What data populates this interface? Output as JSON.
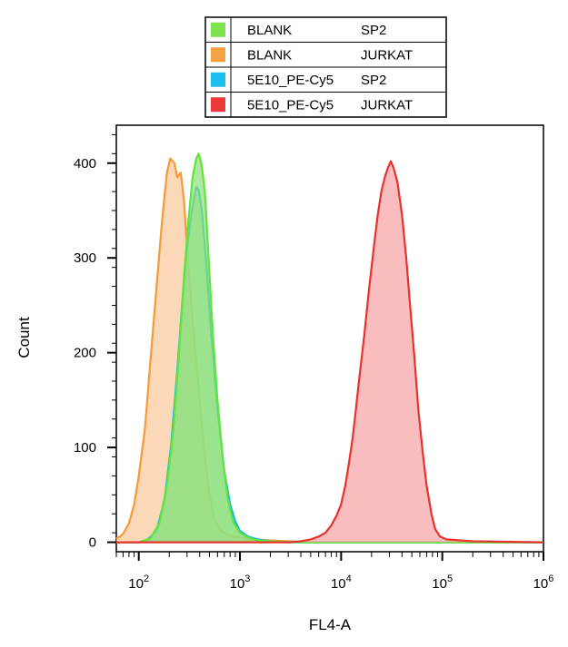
{
  "chart_data": {
    "type": "area",
    "xlabel": "FL4-A",
    "ylabel": "Count",
    "x_scale": "log",
    "xlim": [
      60,
      1000000
    ],
    "ylim": [
      -10,
      440
    ],
    "x_ticks": [
      {
        "value": 100,
        "base": "10",
        "exp": "2"
      },
      {
        "value": 1000,
        "base": "10",
        "exp": "3"
      },
      {
        "value": 10000,
        "base": "10",
        "exp": "4"
      },
      {
        "value": 100000,
        "base": "10",
        "exp": "5"
      },
      {
        "value": 1000000,
        "base": "10",
        "exp": "6"
      }
    ],
    "y_ticks": [
      {
        "value": 0,
        "label": "0"
      },
      {
        "value": 100,
        "label": "100"
      },
      {
        "value": 200,
        "label": "200"
      },
      {
        "value": 300,
        "label": "300"
      },
      {
        "value": 400,
        "label": "400"
      }
    ],
    "legend_position": "top-center",
    "grid": false,
    "series": [
      {
        "name": "BLANK",
        "sample": "JURKAT",
        "fill": "#f9c89a",
        "stroke": "#f59a3a",
        "points": [
          [
            60,
            4
          ],
          [
            65,
            6
          ],
          [
            70,
            9
          ],
          [
            80,
            20
          ],
          [
            90,
            40
          ],
          [
            100,
            70
          ],
          [
            115,
            120
          ],
          [
            130,
            190
          ],
          [
            150,
            270
          ],
          [
            170,
            340
          ],
          [
            190,
            390
          ],
          [
            205,
            405
          ],
          [
            225,
            400
          ],
          [
            240,
            385
          ],
          [
            260,
            390
          ],
          [
            280,
            360
          ],
          [
            310,
            290
          ],
          [
            350,
            220
          ],
          [
            400,
            150
          ],
          [
            450,
            90
          ],
          [
            500,
            50
          ],
          [
            560,
            25
          ],
          [
            650,
            12
          ],
          [
            800,
            7
          ],
          [
            1000,
            5
          ],
          [
            1300,
            3
          ],
          [
            2000,
            2
          ],
          [
            3000,
            1
          ],
          [
            5000,
            0
          ],
          [
            10000,
            0
          ],
          [
            100000,
            0
          ],
          [
            1000000,
            0
          ]
        ]
      },
      {
        "name": "5E10_PE-Cy5",
        "sample": "SP2",
        "fill": "#9fe09a",
        "stroke": "#1ab2e8",
        "points": [
          [
            60,
            0
          ],
          [
            100,
            0
          ],
          [
            120,
            2
          ],
          [
            150,
            12
          ],
          [
            180,
            45
          ],
          [
            210,
            105
          ],
          [
            240,
            180
          ],
          [
            270,
            255
          ],
          [
            300,
            310
          ],
          [
            330,
            345
          ],
          [
            355,
            365
          ],
          [
            370,
            375
          ],
          [
            390,
            372
          ],
          [
            420,
            350
          ],
          [
            460,
            300
          ],
          [
            520,
            220
          ],
          [
            600,
            140
          ],
          [
            700,
            75
          ],
          [
            800,
            40
          ],
          [
            900,
            22
          ],
          [
            1000,
            12
          ],
          [
            1200,
            6
          ],
          [
            1500,
            3
          ],
          [
            2000,
            1
          ],
          [
            3000,
            0
          ],
          [
            100000,
            0
          ],
          [
            1000000,
            0
          ]
        ]
      },
      {
        "name": "BLANK",
        "sample": "SP2",
        "fill": "#8fdf7a",
        "stroke": "#5fe63a",
        "points": [
          [
            60,
            0
          ],
          [
            100,
            0
          ],
          [
            130,
            4
          ],
          [
            160,
            20
          ],
          [
            190,
            60
          ],
          [
            220,
            120
          ],
          [
            250,
            200
          ],
          [
            280,
            280
          ],
          [
            310,
            340
          ],
          [
            340,
            385
          ],
          [
            370,
            405
          ],
          [
            390,
            410
          ],
          [
            415,
            400
          ],
          [
            450,
            370
          ],
          [
            490,
            300
          ],
          [
            540,
            220
          ],
          [
            600,
            150
          ],
          [
            680,
            85
          ],
          [
            760,
            45
          ],
          [
            850,
            22
          ],
          [
            1000,
            10
          ],
          [
            1200,
            5
          ],
          [
            1500,
            2
          ],
          [
            2000,
            1
          ],
          [
            3000,
            0
          ],
          [
            100000,
            0
          ],
          [
            1000000,
            0
          ]
        ]
      },
      {
        "name": "5E10_PE-Cy5",
        "sample": "JURKAT",
        "fill": "#f7a0a4",
        "stroke": "#e8322e",
        "points": [
          [
            60,
            0
          ],
          [
            3000,
            0
          ],
          [
            4000,
            1
          ],
          [
            5000,
            3
          ],
          [
            6000,
            6
          ],
          [
            7000,
            10
          ],
          [
            8000,
            18
          ],
          [
            9000,
            28
          ],
          [
            10000,
            40
          ],
          [
            11000,
            60
          ],
          [
            12000,
            85
          ],
          [
            13000,
            110
          ],
          [
            14000,
            140
          ],
          [
            15000,
            170
          ],
          [
            17000,
            220
          ],
          [
            19000,
            270
          ],
          [
            21000,
            310
          ],
          [
            23000,
            345
          ],
          [
            25000,
            370
          ],
          [
            27000,
            385
          ],
          [
            29000,
            395
          ],
          [
            31000,
            402
          ],
          [
            33000,
            395
          ],
          [
            36000,
            380
          ],
          [
            40000,
            345
          ],
          [
            44000,
            300
          ],
          [
            48000,
            250
          ],
          [
            53000,
            195
          ],
          [
            58000,
            140
          ],
          [
            64000,
            95
          ],
          [
            70000,
            60
          ],
          [
            78000,
            30
          ],
          [
            85000,
            14
          ],
          [
            95000,
            6
          ],
          [
            110000,
            3
          ],
          [
            150000,
            2
          ],
          [
            200000,
            1
          ],
          [
            1000000,
            0
          ]
        ]
      }
    ]
  },
  "legend": [
    {
      "label": "BLANK",
      "sample": "SP2",
      "swatch": "#7ee24a"
    },
    {
      "label": "BLANK",
      "sample": "JURKAT",
      "swatch": "#f5a142"
    },
    {
      "label": "5E10_PE-Cy5",
      "sample": "SP2",
      "swatch": "#1cc0ee"
    },
    {
      "label": "5E10_PE-Cy5",
      "sample": "JURKAT",
      "swatch": "#ee3a3a"
    }
  ]
}
